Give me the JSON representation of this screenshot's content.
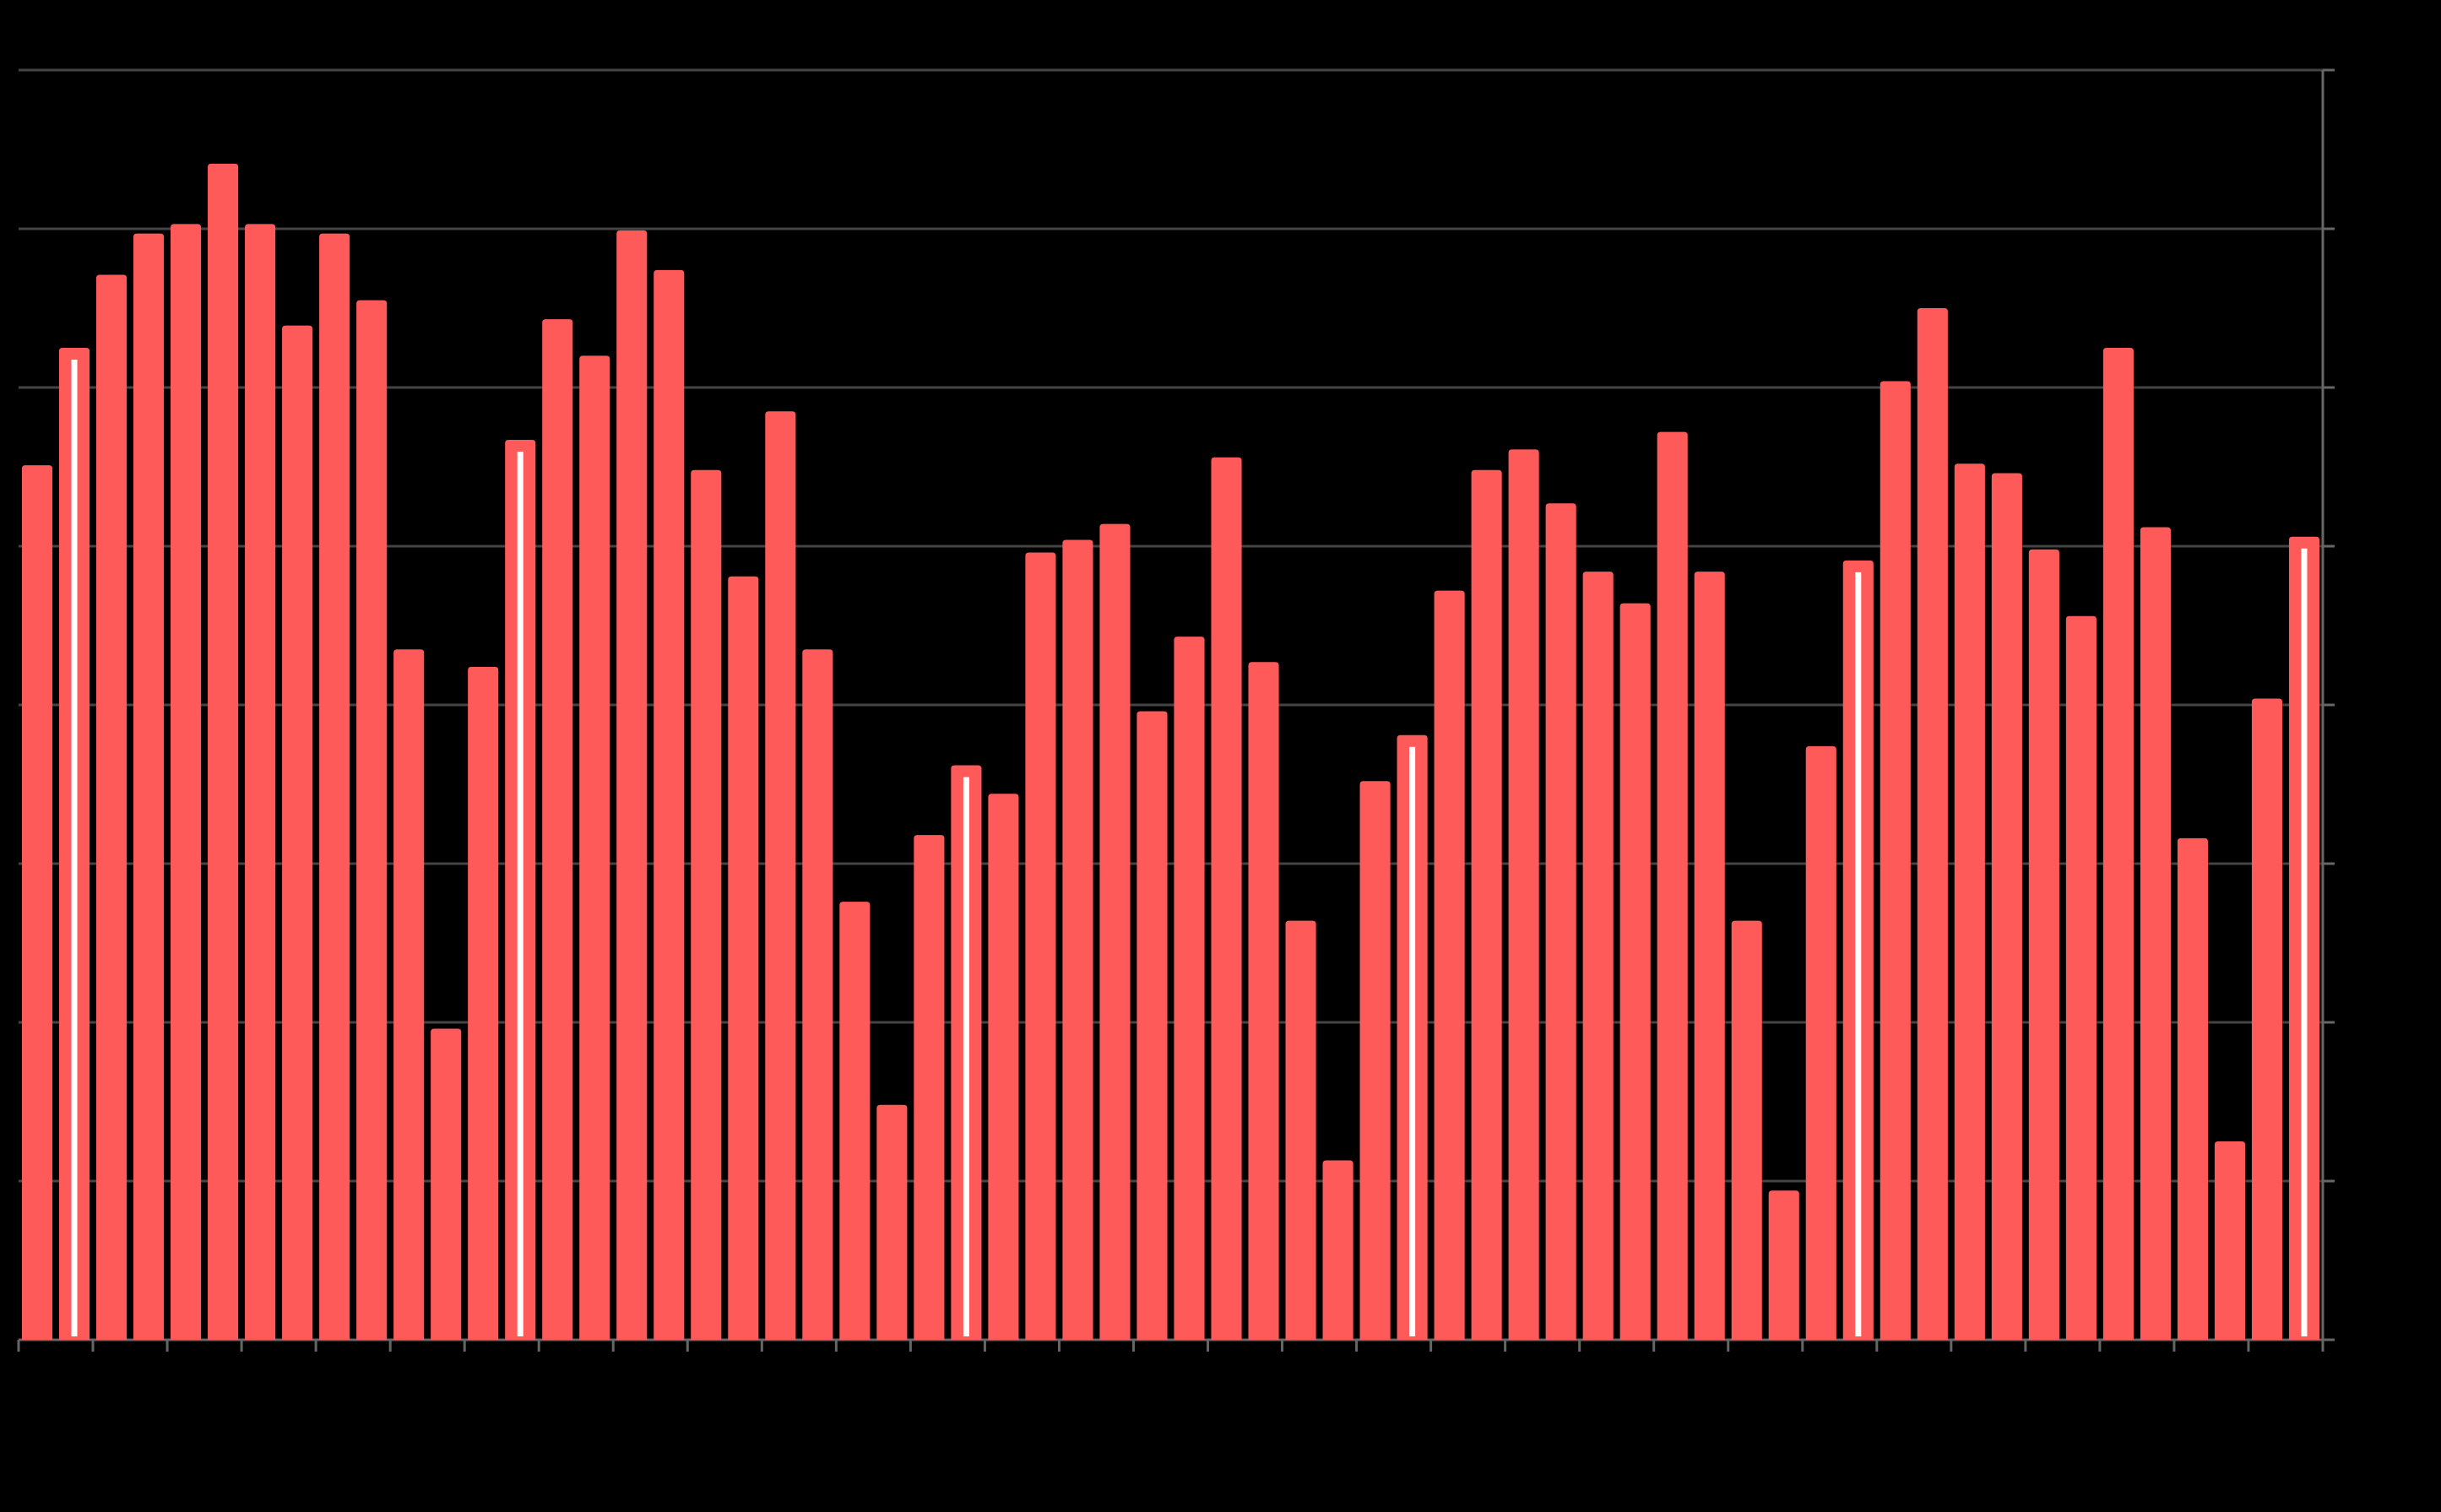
{
  "chart_data": {
    "type": "bar",
    "categories": [
      null,
      null,
      null,
      null,
      null,
      null,
      null,
      null,
      null,
      null,
      null,
      null,
      null,
      null,
      null,
      null,
      null,
      null,
      null,
      null,
      null,
      null,
      null,
      null,
      null,
      null,
      null,
      null,
      null,
      null,
      null,
      null,
      null,
      null,
      null,
      null,
      null,
      null,
      null,
      null,
      null,
      null,
      null,
      null,
      null,
      null,
      null,
      null,
      null,
      null,
      null,
      null,
      null,
      null,
      null,
      null,
      null,
      null,
      null,
      null,
      null,
      null
    ],
    "values": [
      55.1,
      62.5,
      67.1,
      69.7,
      70.3,
      74.1,
      70.3,
      63.9,
      69.7,
      65.5,
      43.5,
      19.6,
      42.4,
      56.7,
      64.3,
      62.0,
      69.9,
      67.4,
      54.8,
      48.1,
      58.5,
      43.5,
      27.6,
      14.8,
      31.8,
      36.2,
      34.4,
      49.6,
      50.4,
      51.4,
      39.6,
      44.3,
      55.6,
      42.7,
      26.4,
      11.3,
      35.2,
      38.1,
      47.2,
      54.8,
      56.1,
      52.7,
      48.4,
      46.4,
      57.2,
      48.4,
      26.4,
      9.4,
      37.4,
      49.1,
      60.4,
      65.0,
      55.2,
      54.6,
      49.8,
      45.6,
      62.5,
      51.2,
      31.6,
      12.5,
      40.4,
      50.6
    ],
    "color": "#ff5a5a",
    "highlighted": [
      1,
      13,
      25,
      37,
      49,
      61
    ],
    "ylim": [
      0,
      80
    ],
    "yticks": [
      0,
      10,
      20,
      30,
      40,
      50,
      60,
      70,
      80
    ],
    "grid": true
  }
}
